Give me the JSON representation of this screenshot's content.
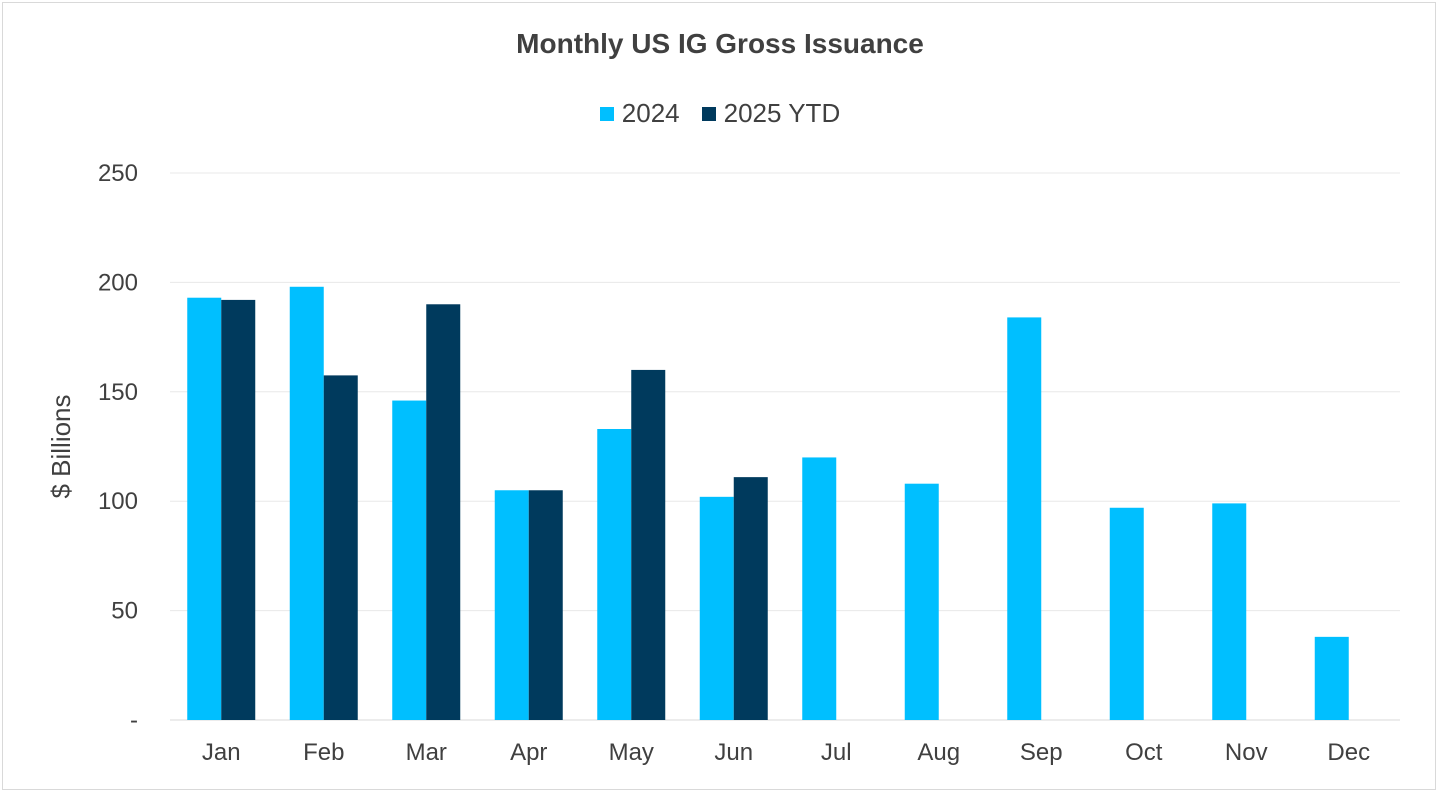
{
  "chart_data": {
    "type": "bar",
    "title": "Monthly US IG Gross Issuance",
    "ylabel": "$ Billions",
    "xlabel": "",
    "ylim": [
      0,
      250
    ],
    "yticks": [
      0,
      50,
      100,
      150,
      200,
      250
    ],
    "ytick_labels": [
      "-",
      "50",
      "100",
      "150",
      "200",
      "250"
    ],
    "grid": true,
    "legend_position": "top",
    "categories": [
      "Jan",
      "Feb",
      "Mar",
      "Apr",
      "May",
      "Jun",
      "Jul",
      "Aug",
      "Sep",
      "Oct",
      "Nov",
      "Dec"
    ],
    "series": [
      {
        "name": "2024",
        "color": "#00BFFF",
        "values": [
          193,
          198,
          146,
          105,
          133,
          102,
          120,
          108,
          184,
          97,
          99,
          38
        ]
      },
      {
        "name": "2025 YTD",
        "color": "#003A5D",
        "values": [
          192,
          157.5,
          190,
          105,
          160,
          111,
          null,
          null,
          null,
          null,
          null,
          null
        ]
      }
    ]
  }
}
